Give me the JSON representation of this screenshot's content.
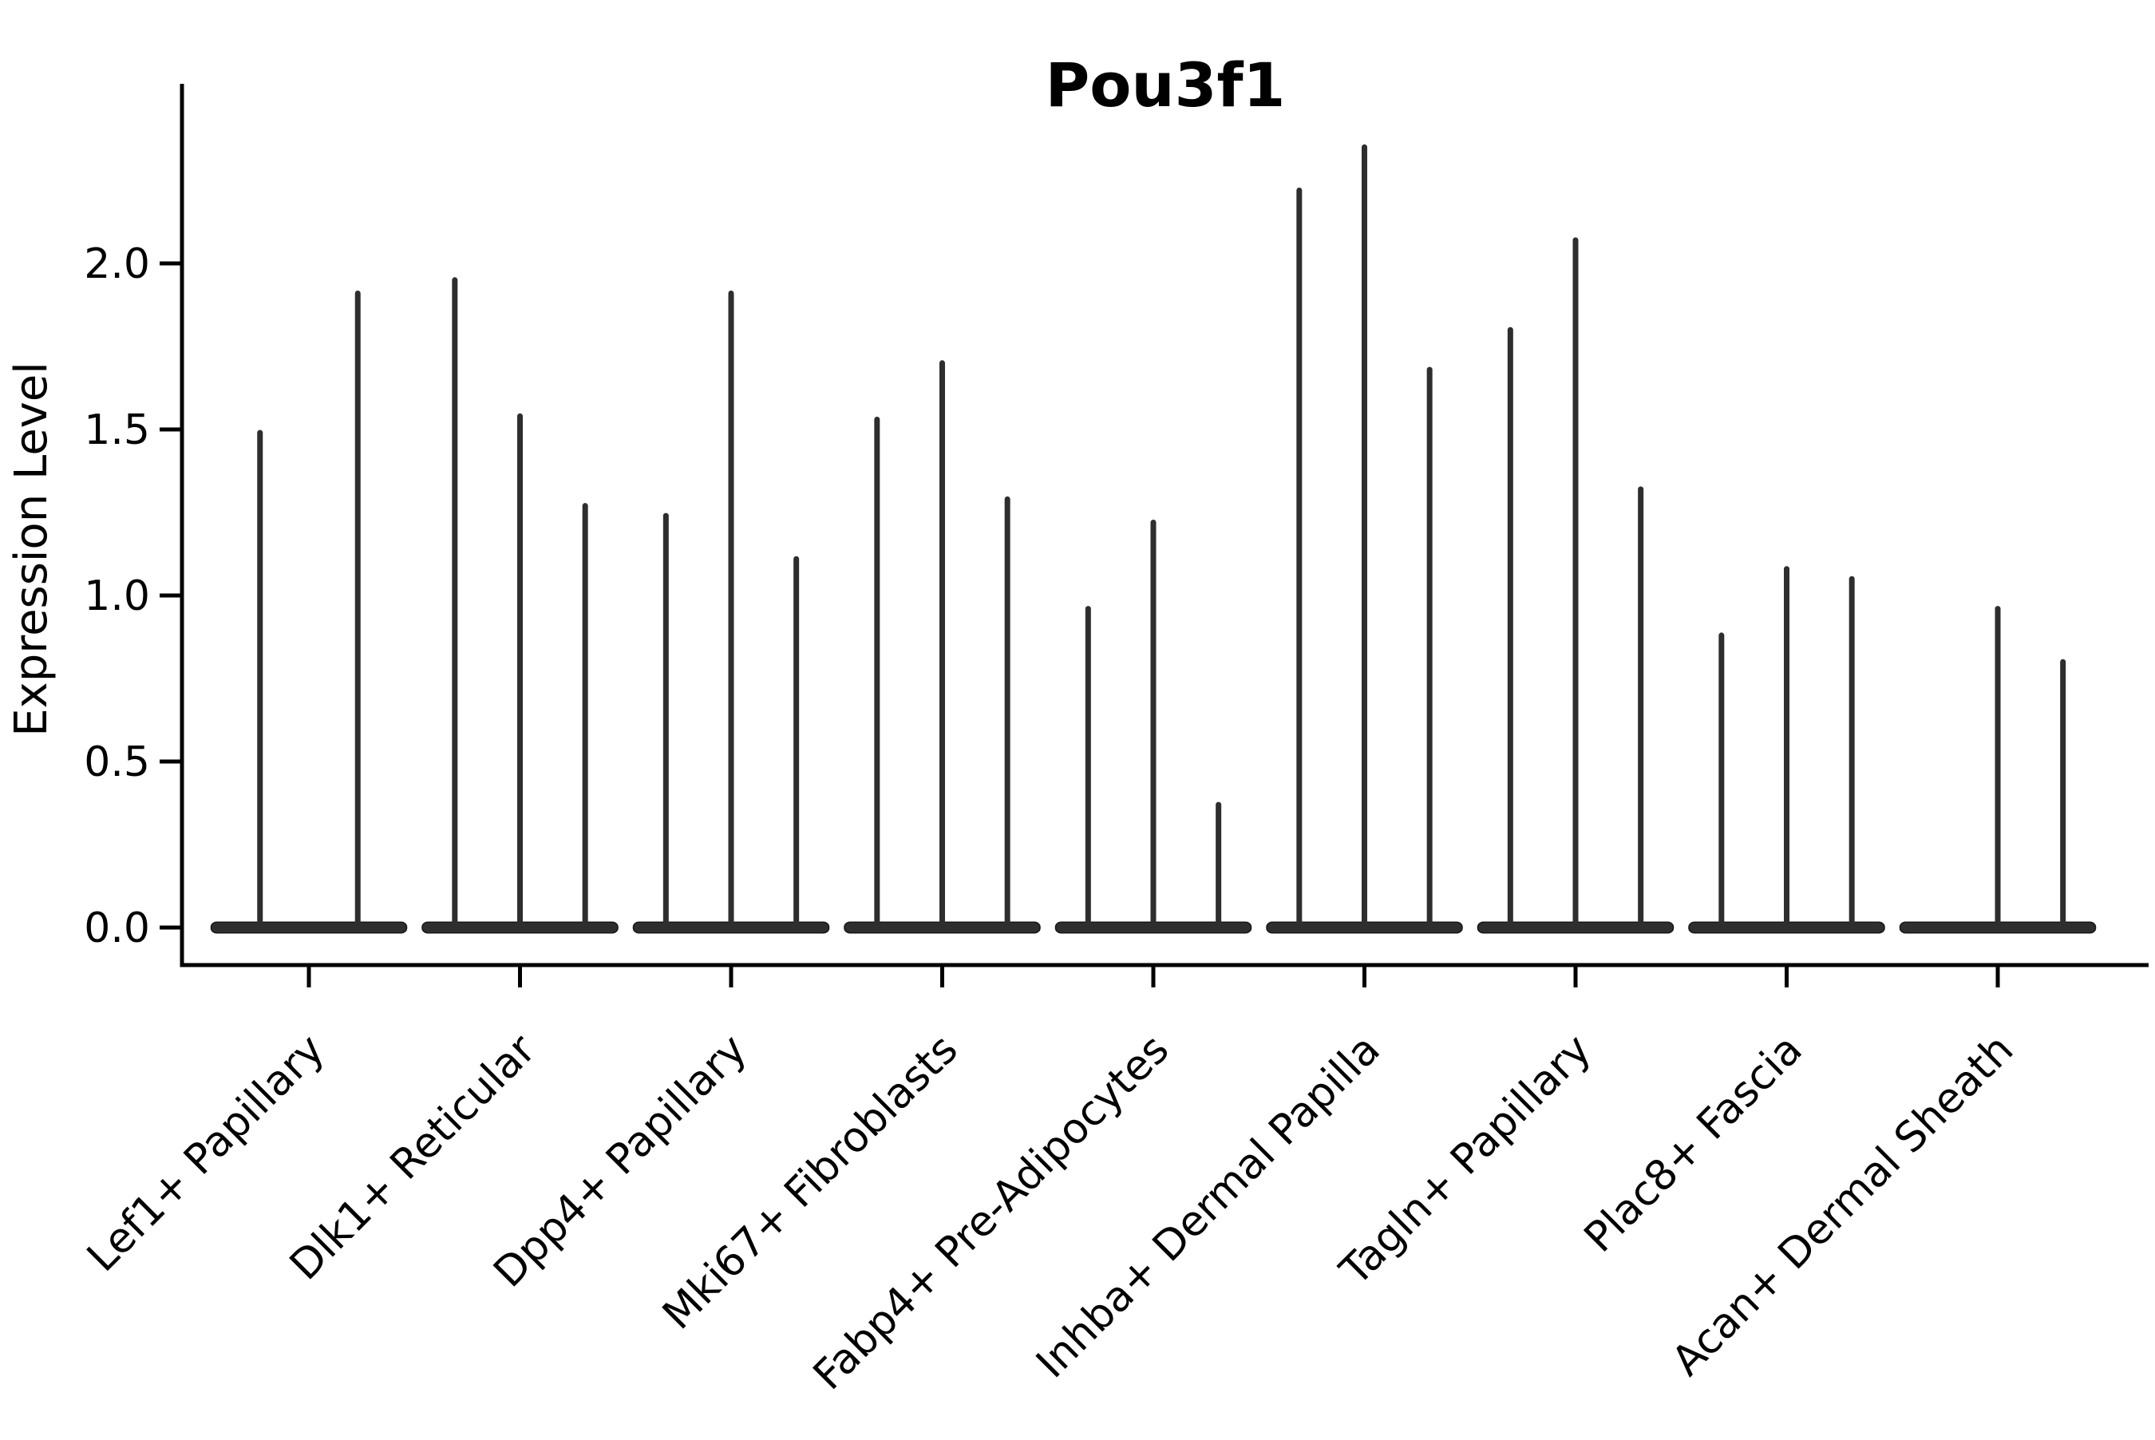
{
  "title": "Pou3f1",
  "axes": {
    "ylabel": "Expression Level",
    "xlabel": "",
    "ytick_labels": [
      "0.0",
      "0.5",
      "1.0",
      "1.5",
      "2.0"
    ]
  },
  "chart_data": {
    "type": "violin",
    "title": "Pou3f1",
    "xlabel": "",
    "ylabel": "Expression Level",
    "ylim": [
      -0.11,
      2.54
    ],
    "yticks": [
      0.0,
      0.5,
      1.0,
      1.5,
      2.0
    ],
    "grid": false,
    "legend": "none",
    "description": "Stacked-style violin plot; each category holds adjacent thin violins whose density mass sits flat at 0 with a narrow spike rising to the listed peak expression value. A peak of 0 means a flat violin with no spike.",
    "categories": [
      "Lef1+ Papillary",
      "Dlk1+ Reticular",
      "Dpp4+ Papillary",
      "Mki67+ Fibroblasts",
      "Fabp4+ Pre-Adipocytes",
      "Inhba+ Dermal Papilla",
      "Tagln+ Papillary",
      "Plac8+ Fascia",
      "Acan+ Dermal Sheath"
    ],
    "groups": [
      {
        "category": "Lef1+ Papillary",
        "violin_peaks": [
          1.49,
          1.91
        ]
      },
      {
        "category": "Dlk1+ Reticular",
        "violin_peaks": [
          1.95,
          1.54,
          1.27
        ]
      },
      {
        "category": "Dpp4+ Papillary",
        "violin_peaks": [
          1.24,
          1.91,
          1.11
        ]
      },
      {
        "category": "Mki67+ Fibroblasts",
        "violin_peaks": [
          1.53,
          1.7,
          1.29
        ]
      },
      {
        "category": "Fabp4+ Pre-Adipocytes",
        "violin_peaks": [
          0.96,
          1.22,
          0.37
        ]
      },
      {
        "category": "Inhba+ Dermal Papilla",
        "violin_peaks": [
          2.22,
          2.35,
          1.68
        ]
      },
      {
        "category": "Tagln+ Papillary",
        "violin_peaks": [
          1.8,
          2.07,
          1.32
        ]
      },
      {
        "category": "Plac8+ Fascia",
        "violin_peaks": [
          0.88,
          1.08,
          1.05
        ]
      },
      {
        "category": "Acan+ Dermal Sheath",
        "violin_peaks": [
          0.0,
          0.96,
          0.8
        ]
      }
    ],
    "violin_color": "#2e2e2e",
    "axis_color": "#000000"
  }
}
